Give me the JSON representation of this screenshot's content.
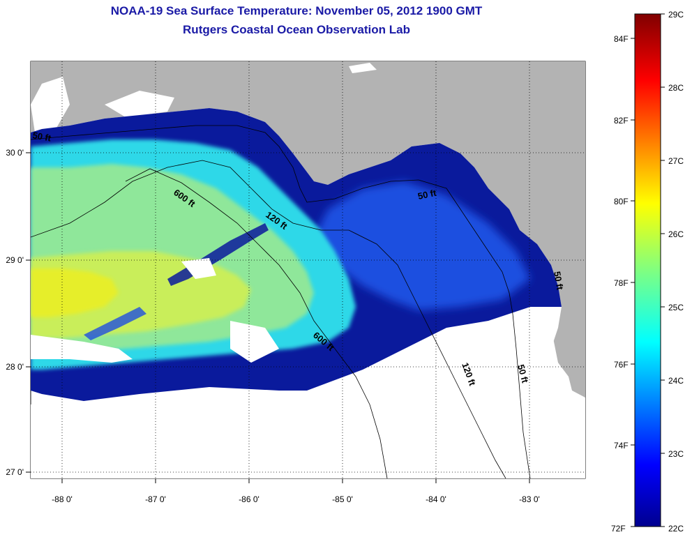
{
  "title": {
    "line1": "NOAA-19 Sea Surface Temperature:  November 05, 2012 1900 GMT",
    "line2": "Rutgers Coastal Ocean Observation Lab"
  },
  "map": {
    "lon_ticks": [
      "-88 0'",
      "-87 0'",
      "-86 0'",
      "-85 0'",
      "-84 0'",
      "-83 0'"
    ],
    "lat_ticks": [
      "30 0'",
      "29 0'",
      "28 0'",
      "27 0'"
    ],
    "contour_labels": [
      "600 ft",
      "120 ft",
      "50 ft",
      "600 ft",
      "120 ft",
      "50 ft",
      "50 ft",
      "50 ft"
    ],
    "colors": {
      "land": "#b3b3b3",
      "no_data": "#ffffff",
      "deep_blue": "#0a1a9c",
      "blue": "#1f4fe0",
      "cyan": "#2ed8e8",
      "green": "#8fe79a",
      "yellow_green": "#c9ee5a",
      "yellow": "#e6ee2a"
    }
  },
  "colorbar": {
    "celsius_labels": [
      "29C",
      "28C",
      "27C",
      "26C",
      "25C",
      "24C",
      "23C",
      "22C"
    ],
    "fahrenheit_labels": [
      "84F",
      "82F",
      "80F",
      "78F",
      "76F",
      "74F",
      "72F"
    ]
  }
}
